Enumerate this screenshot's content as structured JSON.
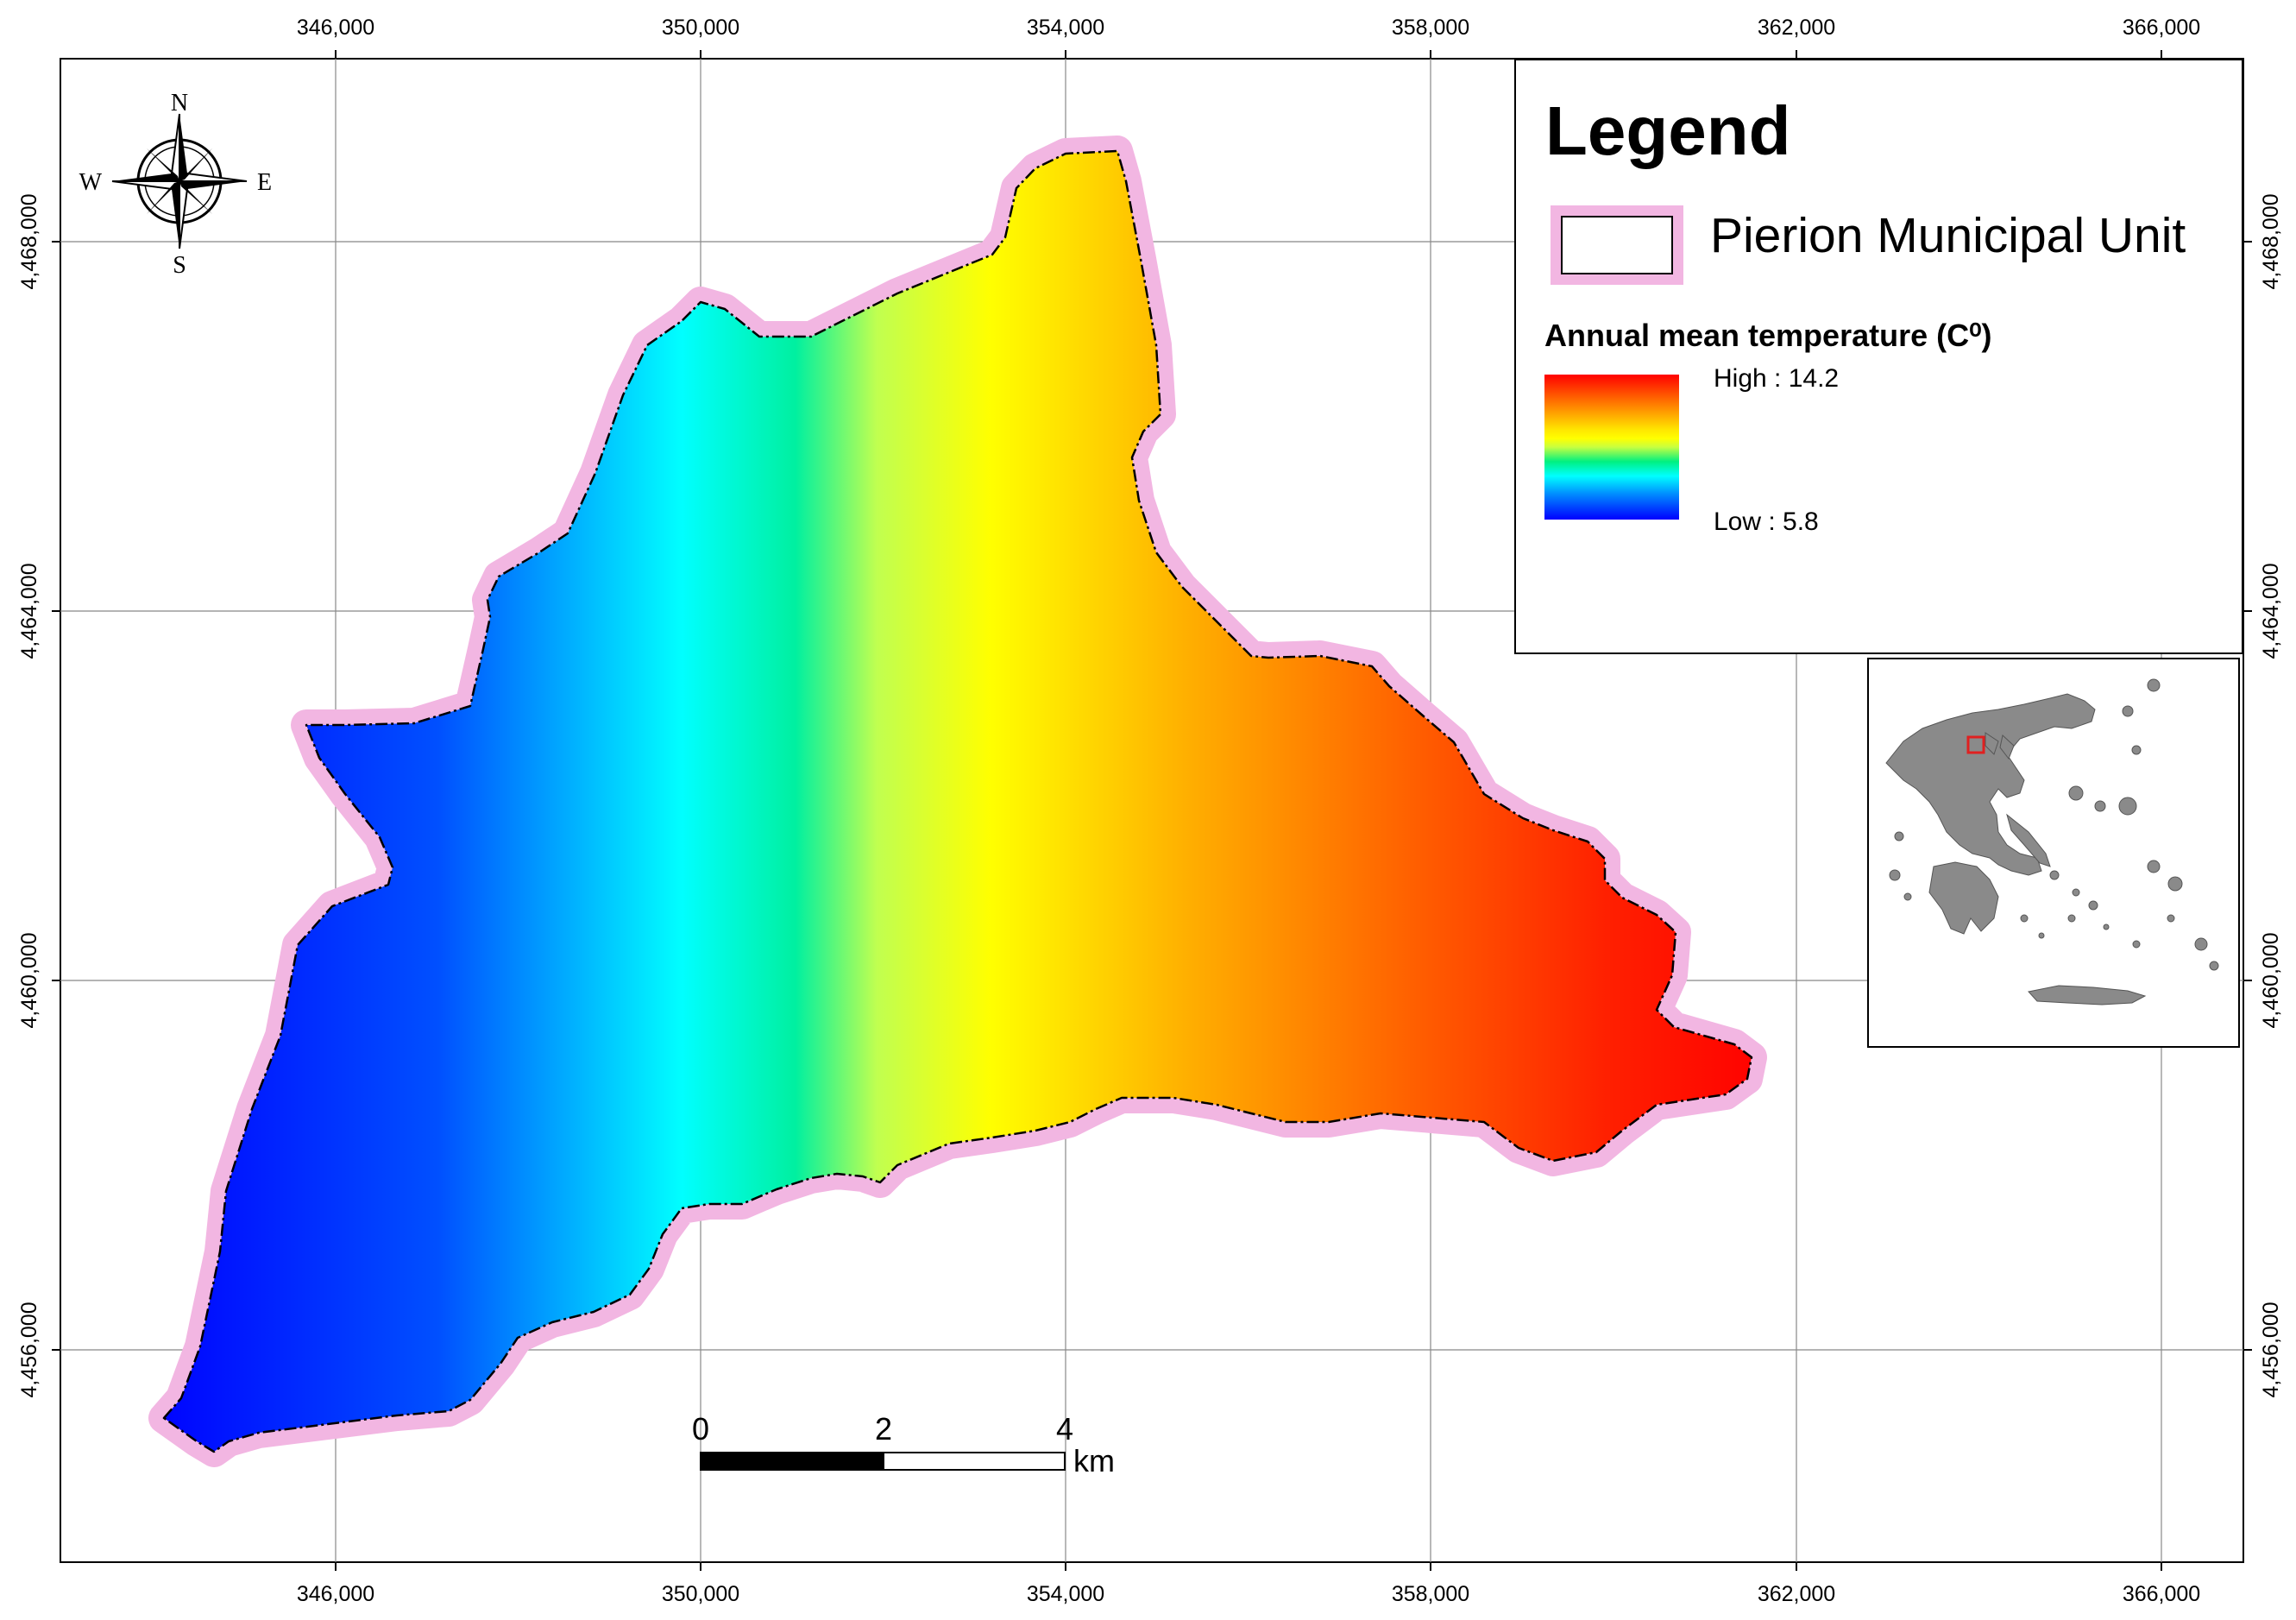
{
  "map": {
    "x_ticks": [
      "346,000",
      "350,000",
      "354,000",
      "358,000",
      "362,000",
      "366,000"
    ],
    "y_ticks": [
      "4,468,000",
      "4,464,000",
      "4,460,000",
      "4,456,000"
    ]
  },
  "compass": {
    "n": "N",
    "s": "S",
    "e": "E",
    "w": "W"
  },
  "scalebar": {
    "labels": [
      "0",
      "2",
      "4"
    ],
    "unit": "km"
  },
  "legend": {
    "title": "Legend",
    "municipality_label": "Pierion Municipal Unit",
    "temp_title": "Annual mean temperature (C⁰)",
    "high": "High : 14.2",
    "low": "Low : 5.8",
    "boundary_color": "#f2b6e2",
    "ramp_colors": [
      "#ff0000",
      "#ff7a00",
      "#ffff00",
      "#00f080",
      "#00ffff",
      "#0000ff"
    ]
  },
  "inset": {
    "highlight_color": "#e02020"
  }
}
